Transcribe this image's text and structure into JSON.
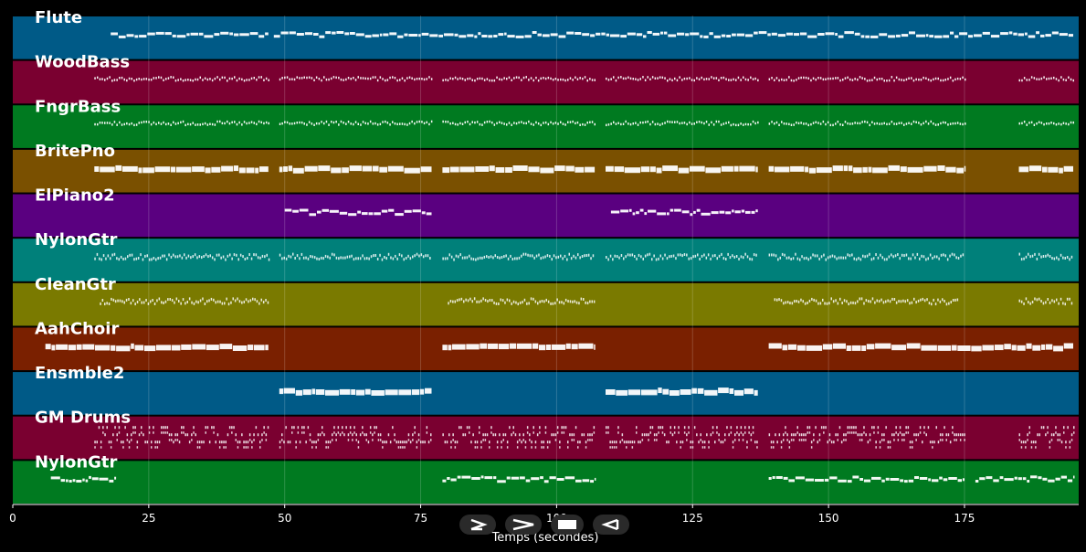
{
  "tracks": [
    {
      "name": "Flute",
      "color": "#005a87",
      "segments": [
        [
          18,
          47
        ],
        [
          48,
          195
        ]
      ],
      "style": "melody"
    },
    {
      "name": "WoodBass",
      "color": "#7a0030",
      "segments": [
        [
          15,
          47
        ],
        [
          49,
          77
        ],
        [
          79,
          107
        ],
        [
          109,
          137
        ],
        [
          139,
          175
        ],
        [
          185,
          195
        ]
      ],
      "style": "sparse"
    },
    {
      "name": "FngrBass",
      "color": "#007a20",
      "segments": [
        [
          15,
          47
        ],
        [
          49,
          77
        ],
        [
          79,
          107
        ],
        [
          109,
          137
        ],
        [
          139,
          175
        ],
        [
          185,
          195
        ]
      ],
      "style": "sparse"
    },
    {
      "name": "BritePno",
      "color": "#7a5000",
      "segments": [
        [
          15,
          47
        ],
        [
          49,
          77
        ],
        [
          79,
          107
        ],
        [
          109,
          137
        ],
        [
          139,
          175
        ],
        [
          185,
          195
        ]
      ],
      "style": "thick"
    },
    {
      "name": "ElPiano2",
      "color": "#5a0080",
      "segments": [
        [
          50,
          77
        ],
        [
          110,
          137
        ]
      ],
      "style": "melody"
    },
    {
      "name": "NylonGtr",
      "color": "#00807a",
      "segments": [
        [
          15,
          47
        ],
        [
          49,
          77
        ],
        [
          79,
          107
        ],
        [
          109,
          137
        ],
        [
          139,
          175
        ],
        [
          185,
          195
        ]
      ],
      "style": "arp"
    },
    {
      "name": "CleanGtr",
      "color": "#7a7a00",
      "segments": [
        [
          16,
          47
        ],
        [
          80,
          107
        ],
        [
          140,
          174
        ],
        [
          185,
          195
        ]
      ],
      "style": "arp"
    },
    {
      "name": "AahChoir",
      "color": "#7a2000",
      "segments": [
        [
          6,
          47
        ],
        [
          79,
          107
        ],
        [
          139,
          195
        ]
      ],
      "style": "thick"
    },
    {
      "name": "Ensmble2",
      "color": "#005a87",
      "segments": [
        [
          49,
          77
        ],
        [
          109,
          137
        ]
      ],
      "style": "thick"
    },
    {
      "name": "GM Drums",
      "color": "#7a0030",
      "segments": [
        [
          15,
          47
        ],
        [
          49,
          77
        ],
        [
          79,
          107
        ],
        [
          109,
          137
        ],
        [
          139,
          175
        ],
        [
          185,
          195
        ]
      ],
      "style": "drums"
    },
    {
      "name": "NylonGtr",
      "color": "#007a20",
      "segments": [
        [
          7,
          19
        ],
        [
          79,
          107
        ],
        [
          139,
          175
        ],
        [
          177,
          195
        ]
      ],
      "style": "melody"
    }
  ],
  "axis": {
    "min": 0,
    "max": 196,
    "ticks": [
      0,
      25,
      50,
      75,
      100,
      125,
      150,
      175
    ],
    "tick_labels": [
      "0",
      "25",
      "50",
      "75",
      "100",
      "125",
      "150",
      "175"
    ],
    "label": "Temps (secondes)"
  },
  "controls": [
    {
      "name": "play-from-start-icon",
      "glyph": "play-bar"
    },
    {
      "name": "next-icon",
      "glyph": "chevron-right"
    },
    {
      "name": "stop-icon",
      "glyph": "stop"
    },
    {
      "name": "previous-icon",
      "glyph": "play-back"
    }
  ]
}
